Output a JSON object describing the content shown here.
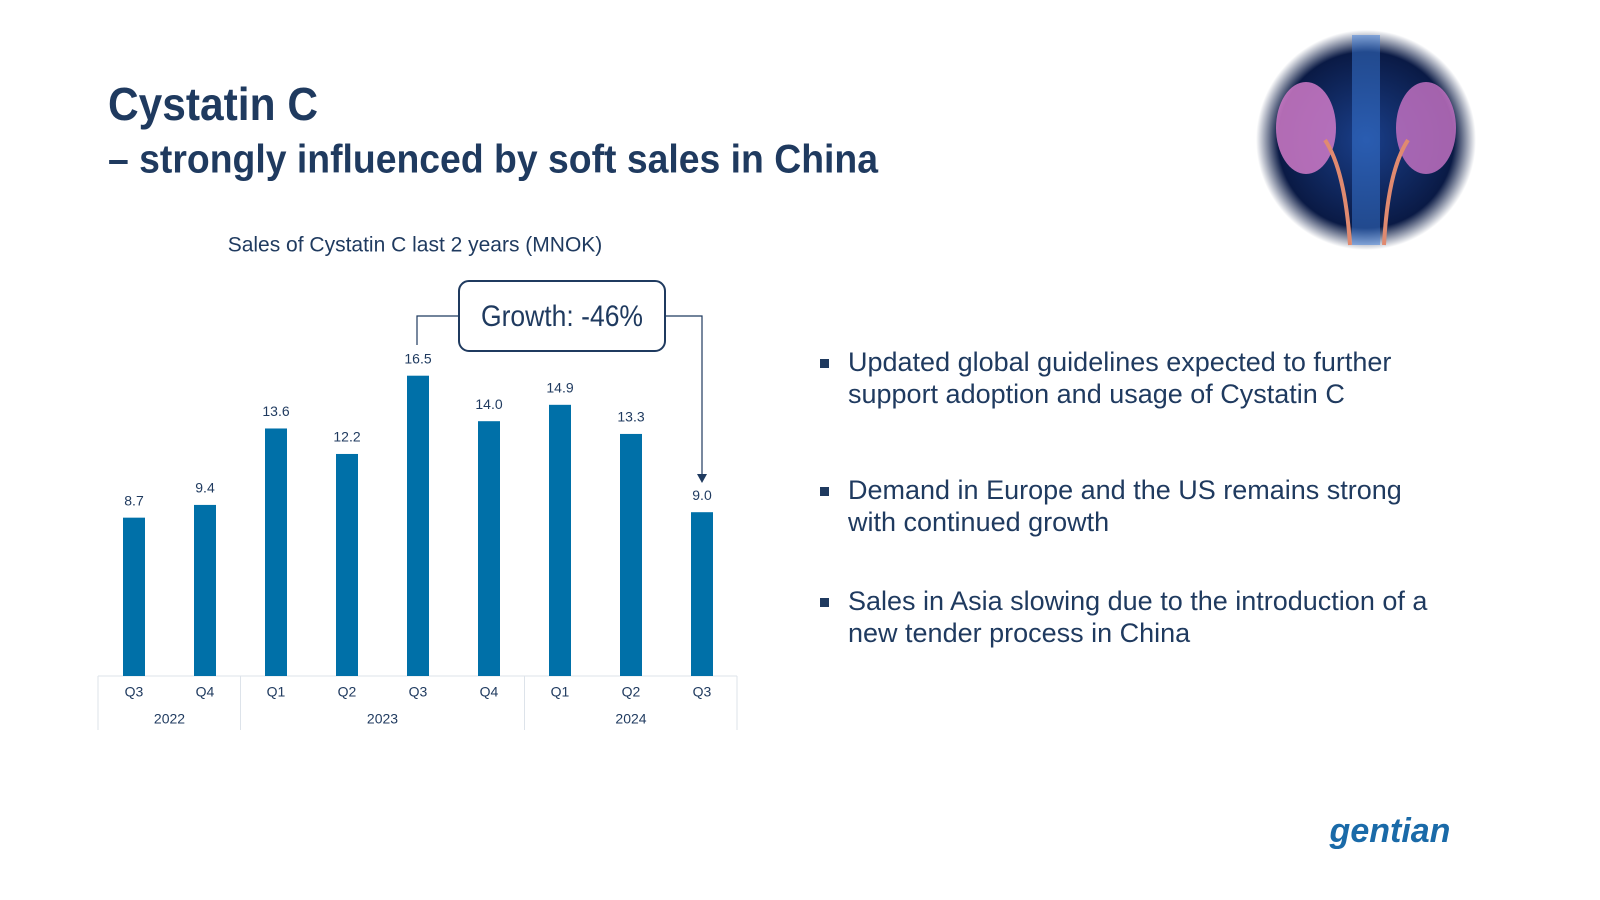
{
  "title": "Cystatin C",
  "subtitle": "– strongly influenced by soft sales in China",
  "chart_data": {
    "type": "bar",
    "title": "Sales of Cystatin C last 2 years (MNOK)",
    "groups": [
      {
        "name": "2022",
        "categories": [
          "Q3",
          "Q4"
        ]
      },
      {
        "name": "2023",
        "categories": [
          "Q1",
          "Q2",
          "Q3",
          "Q4"
        ]
      },
      {
        "name": "2024",
        "categories": [
          "Q1",
          "Q2",
          "Q3"
        ]
      }
    ],
    "values": [
      8.7,
      9.4,
      13.6,
      12.2,
      16.5,
      14.0,
      14.9,
      13.3,
      9.0
    ],
    "value_labels": [
      "8.7",
      "9.4",
      "13.6",
      "12.2",
      "16.5",
      "14.0",
      "14.9",
      "13.3",
      "9.0"
    ],
    "color": "#0070a8",
    "annotation": "Growth: -46%"
  },
  "bullets": [
    [
      "Updated global guidelines expected to further",
      "support adoption and usage of Cystatin C"
    ],
    [
      "Demand in Europe and the US remains strong",
      "with continued growth"
    ],
    [
      "Sales in Asia slowing due to the introduction of a",
      "new tender process in China"
    ]
  ],
  "logo": "gentian"
}
